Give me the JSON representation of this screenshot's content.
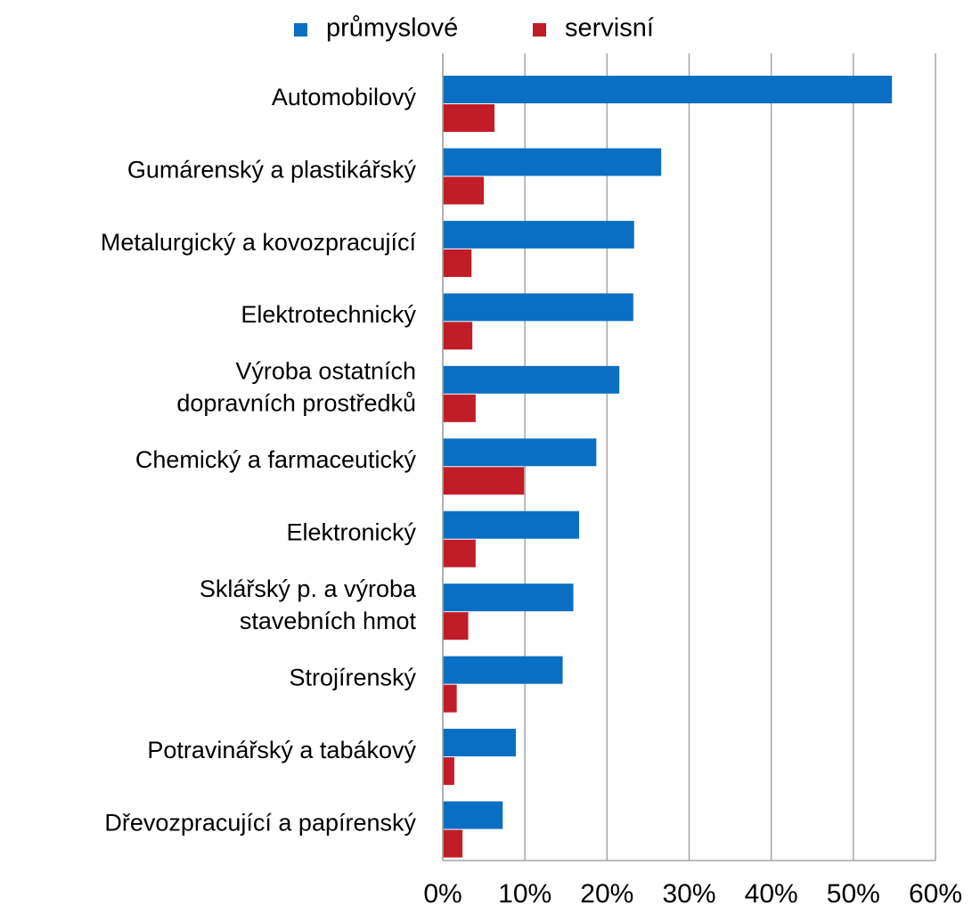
{
  "chart_data": {
    "type": "hbar",
    "categories": [
      "Automobilový",
      "Gumárenský a plastikářský",
      "Metalurgický a kovozpracující",
      "Elektrotechnický",
      "Výroba ostatních\ndopravních prostředků",
      "Chemický a farmaceutický",
      "Elektronický",
      "Sklářský p. a výroba\nstavebních hmot",
      "Strojírenský",
      "Potravinářský a tabákový",
      "Dřevozpracující a papírenský"
    ],
    "series": [
      {
        "name": "průmyslové",
        "color": "#0a6fc2",
        "values": [
          54.7,
          26.6,
          23.3,
          23.2,
          21.5,
          18.7,
          16.6,
          15.9,
          14.6,
          8.9,
          7.3
        ]
      },
      {
        "name": "servisní",
        "color": "#c01d28",
        "values": [
          6.3,
          5.0,
          3.5,
          3.6,
          4.0,
          9.9,
          4.0,
          3.1,
          1.7,
          1.4,
          2.4
        ]
      }
    ],
    "xlim": [
      0,
      60
    ],
    "xticks": [
      {
        "value": 0,
        "label": "0%"
      },
      {
        "value": 10,
        "label": "10%"
      },
      {
        "value": 20,
        "label": "20%"
      },
      {
        "value": 30,
        "label": "30%"
      },
      {
        "value": 40,
        "label": "40%"
      },
      {
        "value": 50,
        "label": "50%"
      },
      {
        "value": 60,
        "label": "60%"
      }
    ],
    "grid": true,
    "legend": "top"
  }
}
